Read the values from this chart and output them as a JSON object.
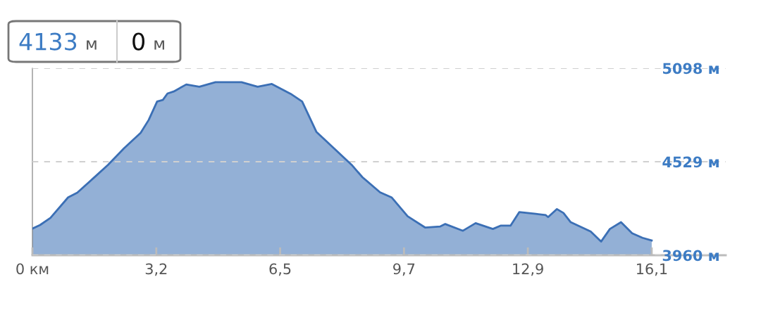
{
  "chart_data": {
    "type": "area",
    "x": [
      0,
      0.2,
      0.47,
      0.93,
      1.17,
      1.6,
      1.97,
      2.39,
      2.82,
      3.03,
      3.25,
      3.4,
      3.52,
      3.68,
      4.01,
      4.35,
      4.77,
      5.45,
      5.87,
      6.24,
      6.73,
      7.03,
      7.4,
      7.89,
      8.32,
      8.6,
      9.06,
      9.36,
      9.78,
      10.24,
      10.63,
      10.76,
      11.22,
      11.55,
      12.0,
      12.2,
      12.46,
      12.69,
      13.12,
      13.38,
      13.44,
      13.67,
      13.84,
      14.03,
      14.55,
      14.82,
      15.05,
      15.34,
      15.63,
      15.9,
      16.14
    ],
    "series": [
      {
        "color": "#3b6fb5",
        "values": [
          4122,
          4144,
          4187,
          4312,
          4341,
          4431,
          4510,
          4611,
          4704,
          4783,
          4895,
          4905,
          4944,
          4956,
          4999,
          4985,
          5013,
          5013,
          4985,
          5002,
          4942,
          4895,
          4711,
          4604,
          4510,
          4435,
          4343,
          4312,
          4197,
          4128,
          4135,
          4150,
          4109,
          4155,
          4120,
          4140,
          4140,
          4223,
          4212,
          4204,
          4192,
          4241,
          4217,
          4161,
          4104,
          4043,
          4120,
          4161,
          4094,
          4066,
          4050
        ]
      }
    ],
    "xlim": [
      0,
      18.07
    ],
    "xticks": [
      {
        "value": 0,
        "label": "0 км"
      },
      {
        "value": 3.228,
        "label": "3,2"
      },
      {
        "value": 6.456,
        "label": "6,5"
      },
      {
        "value": 9.684,
        "label": "9,7"
      },
      {
        "value": 12.912,
        "label": "12,9"
      },
      {
        "value": 16.14,
        "label": "16,1"
      }
    ],
    "ylim": [
      3960,
      5098
    ],
    "yticks": [
      {
        "value": 3960,
        "label": "3960 м"
      },
      {
        "value": 4529,
        "label": "4529 м"
      },
      {
        "value": 5098,
        "label": "5098 м"
      }
    ],
    "grid": "y",
    "legend": false,
    "annotations": [
      "4133 м",
      "0 м"
    ]
  }
}
